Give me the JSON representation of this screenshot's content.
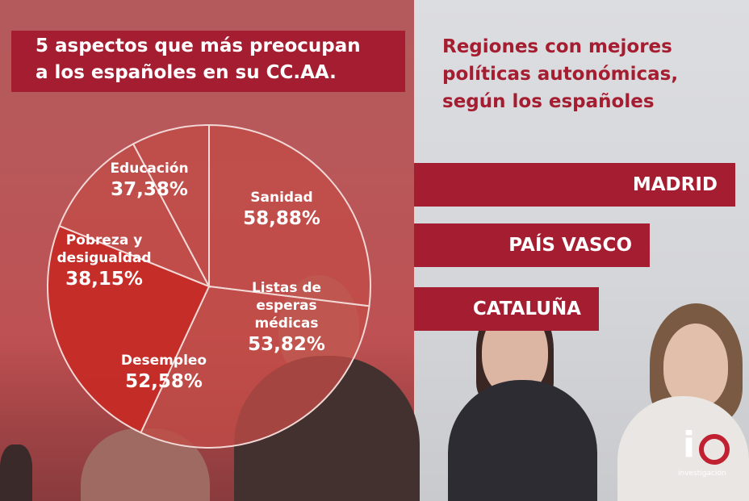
{
  "left_title": {
    "line1": "5 aspectos que más preocupan",
    "line2": "a los españoles en su CC.AA."
  },
  "right_title": {
    "line1": "Regiones con mejores",
    "line2": "políticas autonómicas,",
    "line3": "según los españoles"
  },
  "regions": [
    {
      "name": "MADRID"
    },
    {
      "name": "PAÍS VASCO"
    },
    {
      "name": "CATALUÑA"
    }
  ],
  "colors": {
    "brand_red": "#a51d30",
    "left_panel": "#b8585a",
    "right_panel": "#d8d9dd",
    "slice_light": "#c24b47",
    "slice_dark": "#c52a25",
    "slice_stroke": "#f1d7d5"
  },
  "chart_data": {
    "type": "pie",
    "title": "5 aspectos que más preocupan a los españoles en su CC.AA.",
    "unit": "%",
    "slices": [
      {
        "label": "Sanidad",
        "value": 58.88,
        "display": "58,88%",
        "text_lines": [
          "Sanidad"
        ]
      },
      {
        "label": "Listas de esperas médicas",
        "value": 53.82,
        "display": "53,82%",
        "text_lines": [
          "Listas de",
          "esperas",
          "médicas"
        ]
      },
      {
        "label": "Desempleo",
        "value": 52.58,
        "display": "52,58%",
        "text_lines": [
          "Desempleo"
        ]
      },
      {
        "label": "Pobreza y desigualdad",
        "value": 38.15,
        "display": "38,15%",
        "text_lines": [
          "Pobreza y",
          "desigualdad"
        ]
      },
      {
        "label": "Educación",
        "value": 37.38,
        "display": "37,38%",
        "text_lines": [
          "Educación"
        ]
      }
    ]
  },
  "logo": {
    "mark_i": "i",
    "subtitle": "investigación"
  }
}
